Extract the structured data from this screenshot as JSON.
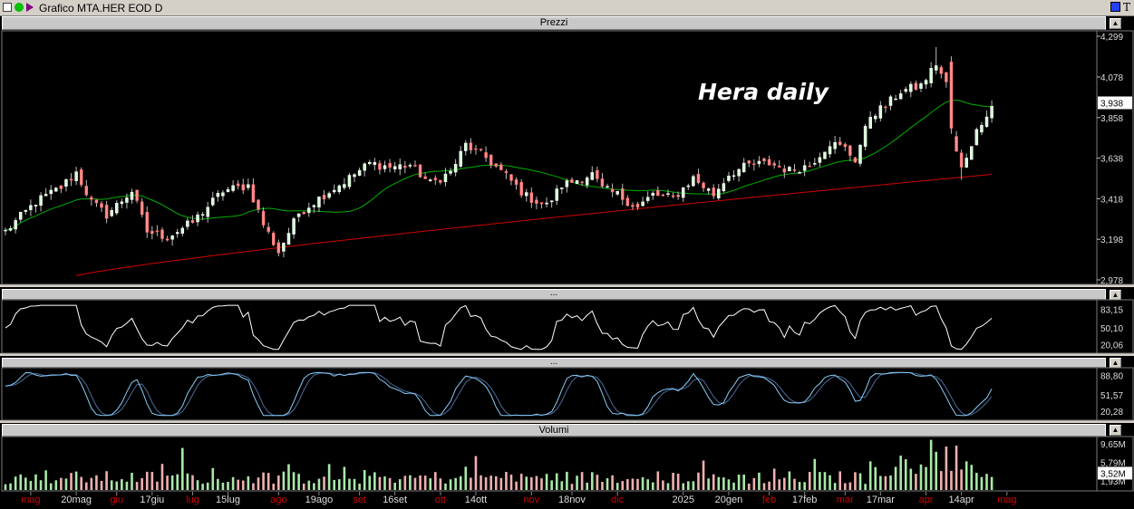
{
  "window": {
    "title": "Grafico MTA.HER EOD D"
  },
  "icons": [
    "window-icon",
    "green-dot-icon",
    "arrow-icon",
    "square-icon",
    "t-icon"
  ],
  "panels": {
    "price_title": "Prezzi",
    "osc1_title": "...",
    "osc2_title": "...",
    "volume_title": "Volumi"
  },
  "chart_data": [
    {
      "type": "candlestick",
      "panel": "price",
      "annotation": "Hera daily",
      "y_ticks": [
        "4,299",
        "4,078",
        "3,858",
        "3,638",
        "3,418",
        "3,198",
        "2,978"
      ],
      "y_tick_values": [
        4.299,
        4.078,
        3.858,
        3.638,
        3.418,
        3.198,
        2.978
      ],
      "ylim": [
        2.978,
        4.299
      ],
      "last_price_label": "3,938",
      "last_price": 3.938,
      "close_anchors": [
        [
          0,
          3.24
        ],
        [
          6,
          3.4
        ],
        [
          11,
          3.48
        ],
        [
          14,
          3.56
        ],
        [
          17,
          3.4
        ],
        [
          20,
          3.33
        ],
        [
          25,
          3.46
        ],
        [
          28,
          3.24
        ],
        [
          32,
          3.21
        ],
        [
          37,
          3.29
        ],
        [
          43,
          3.46
        ],
        [
          48,
          3.49
        ],
        [
          51,
          3.28
        ],
        [
          54,
          3.13
        ],
        [
          58,
          3.34
        ],
        [
          63,
          3.44
        ],
        [
          67,
          3.51
        ],
        [
          72,
          3.61
        ],
        [
          76,
          3.59
        ],
        [
          80,
          3.6
        ],
        [
          84,
          3.5
        ],
        [
          88,
          3.56
        ],
        [
          91,
          3.71
        ],
        [
          95,
          3.64
        ],
        [
          99,
          3.54
        ],
        [
          103,
          3.43
        ],
        [
          107,
          3.38
        ],
        [
          110,
          3.49
        ],
        [
          113,
          3.52
        ],
        [
          116,
          3.55
        ],
        [
          118,
          3.47
        ],
        [
          121,
          3.44
        ],
        [
          125,
          3.37
        ],
        [
          128,
          3.44
        ],
        [
          132,
          3.42
        ],
        [
          136,
          3.53
        ],
        [
          140,
          3.44
        ],
        [
          143,
          3.55
        ],
        [
          147,
          3.6
        ],
        [
          151,
          3.61
        ],
        [
          155,
          3.57
        ],
        [
          159,
          3.6
        ],
        [
          163,
          3.72
        ],
        [
          166,
          3.69
        ],
        [
          168,
          3.63
        ],
        [
          171,
          3.87
        ],
        [
          174,
          3.92
        ],
        [
          177,
          4.0
        ],
        [
          181,
          4.03
        ],
        [
          184,
          4.15
        ],
        [
          186,
          4.04
        ],
        [
          187,
          3.75
        ],
        [
          189,
          3.58
        ],
        [
          191,
          3.72
        ],
        [
          193,
          3.84
        ],
        [
          195,
          3.92
        ]
      ],
      "series": [
        {
          "name": "",
          "color": "#00b000",
          "type": "line",
          "period": 20
        },
        {
          "name": "",
          "color": "#d00000",
          "type": "line",
          "start": 3.0,
          "end": 3.55
        }
      ]
    },
    {
      "type": "line",
      "panel": "oscillator-1",
      "y_ticks": [
        "83,15",
        "50,10",
        "20,06"
      ],
      "y_tick_values": [
        83.15,
        50.1,
        20.06
      ],
      "ylim": [
        10,
        95
      ],
      "series": [
        {
          "name": "",
          "color": "#ffffff"
        }
      ]
    },
    {
      "type": "line",
      "panel": "oscillator-2",
      "y_ticks": [
        "88,80",
        "51,57",
        "20,28"
      ],
      "y_tick_values": [
        88.8,
        51.57,
        20.28
      ],
      "ylim": [
        8,
        98
      ],
      "series": [
        {
          "name": "",
          "color": "#87cefa"
        },
        {
          "name": "",
          "color": "#4d6b9a"
        }
      ]
    },
    {
      "type": "bar",
      "panel": "volume",
      "y_ticks": [
        "9,65M",
        "5,79M",
        "1,93M"
      ],
      "y_tick_values": [
        9.65,
        5.79,
        1.93
      ],
      "ylim": [
        0,
        11
      ],
      "last_volume_label": "3,52M",
      "last_volume": 3.52,
      "colors": {
        "up": "#a8e8a8",
        "down": "#f0b0b0"
      }
    }
  ],
  "x_axis": {
    "labels": [
      {
        "text": "mag",
        "bar": 5,
        "color": "#cc0000"
      },
      {
        "text": "20mag",
        "bar": 14,
        "color": "#dddddd"
      },
      {
        "text": "giu",
        "bar": 22,
        "color": "#cc0000"
      },
      {
        "text": "17giu",
        "bar": 29,
        "color": "#dddddd"
      },
      {
        "text": "lug",
        "bar": 37,
        "color": "#cc0000"
      },
      {
        "text": "15lug",
        "bar": 44,
        "color": "#dddddd"
      },
      {
        "text": "ago",
        "bar": 54,
        "color": "#cc0000"
      },
      {
        "text": "19ago",
        "bar": 62,
        "color": "#dddddd"
      },
      {
        "text": "set",
        "bar": 70,
        "color": "#cc0000"
      },
      {
        "text": "16set",
        "bar": 77,
        "color": "#dddddd"
      },
      {
        "text": "ott",
        "bar": 86,
        "color": "#cc0000"
      },
      {
        "text": "14ott",
        "bar": 93,
        "color": "#dddddd"
      },
      {
        "text": "nov",
        "bar": 104,
        "color": "#cc0000"
      },
      {
        "text": "18nov",
        "bar": 112,
        "color": "#dddddd"
      },
      {
        "text": "dic",
        "bar": 121,
        "color": "#cc0000"
      },
      {
        "text": "2025",
        "bar": 134,
        "color": "#dddddd"
      },
      {
        "text": "20gen",
        "bar": 143,
        "color": "#dddddd"
      },
      {
        "text": "feb",
        "bar": 151,
        "color": "#cc0000"
      },
      {
        "text": "17feb",
        "bar": 158,
        "color": "#dddddd"
      },
      {
        "text": "mar",
        "bar": 166,
        "color": "#cc0000"
      },
      {
        "text": "17mar",
        "bar": 173,
        "color": "#dddddd"
      },
      {
        "text": "apr",
        "bar": 182,
        "color": "#cc0000"
      },
      {
        "text": "14apr",
        "bar": 189,
        "color": "#dddddd"
      },
      {
        "text": "mag",
        "bar": 198,
        "color": "#cc0000"
      }
    ]
  }
}
